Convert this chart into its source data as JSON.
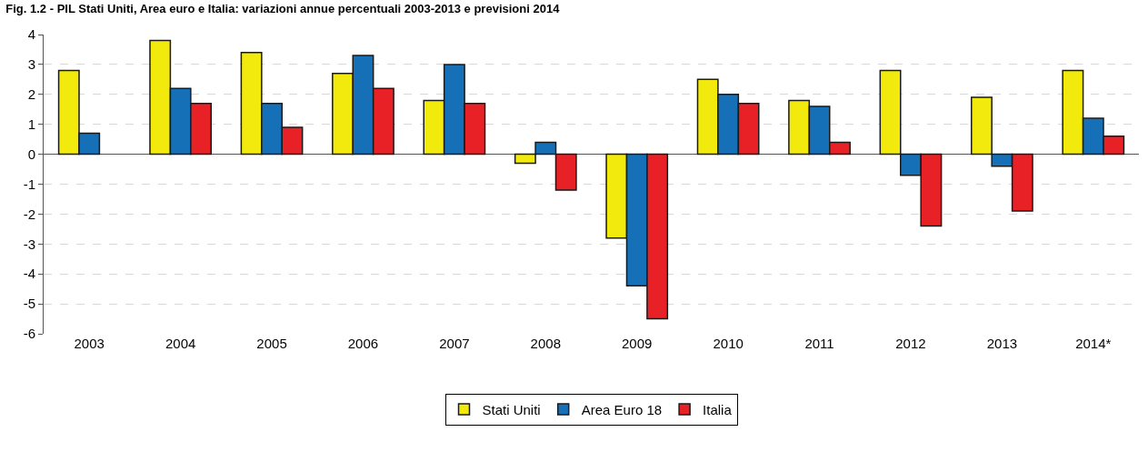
{
  "chart_data": {
    "type": "bar",
    "title": "Fig. 1.2 - PIL Stati Uniti, Area euro e Italia: variazioni annue percentuali 2003-2013 e previsioni 2014",
    "categories": [
      "2003",
      "2004",
      "2005",
      "2006",
      "2007",
      "2008",
      "2009",
      "2010",
      "2011",
      "2012",
      "2013",
      "2014*"
    ],
    "series": [
      {
        "name": "Stati Uniti",
        "color": "#f2ea0c",
        "values": [
          2.8,
          3.8,
          3.4,
          2.7,
          1.8,
          -0.3,
          -2.8,
          2.5,
          1.8,
          2.8,
          1.9,
          2.8
        ]
      },
      {
        "name": "Area Euro 18",
        "color": "#1570b8",
        "values": [
          0.7,
          2.2,
          1.7,
          3.3,
          3.0,
          0.4,
          -4.4,
          2.0,
          1.6,
          -0.7,
          -0.4,
          1.2
        ]
      },
      {
        "name": "Italia",
        "color": "#e82127",
        "values": [
          null,
          1.7,
          0.9,
          2.2,
          1.7,
          -1.2,
          -5.5,
          1.7,
          0.4,
          -2.4,
          -1.9,
          0.6
        ]
      }
    ],
    "ylim": [
      -6,
      4
    ],
    "yticks": [
      -6,
      -5,
      -4,
      -3,
      -2,
      -1,
      0,
      1,
      2,
      3,
      4
    ],
    "grid": "y",
    "legend": "bottom"
  }
}
